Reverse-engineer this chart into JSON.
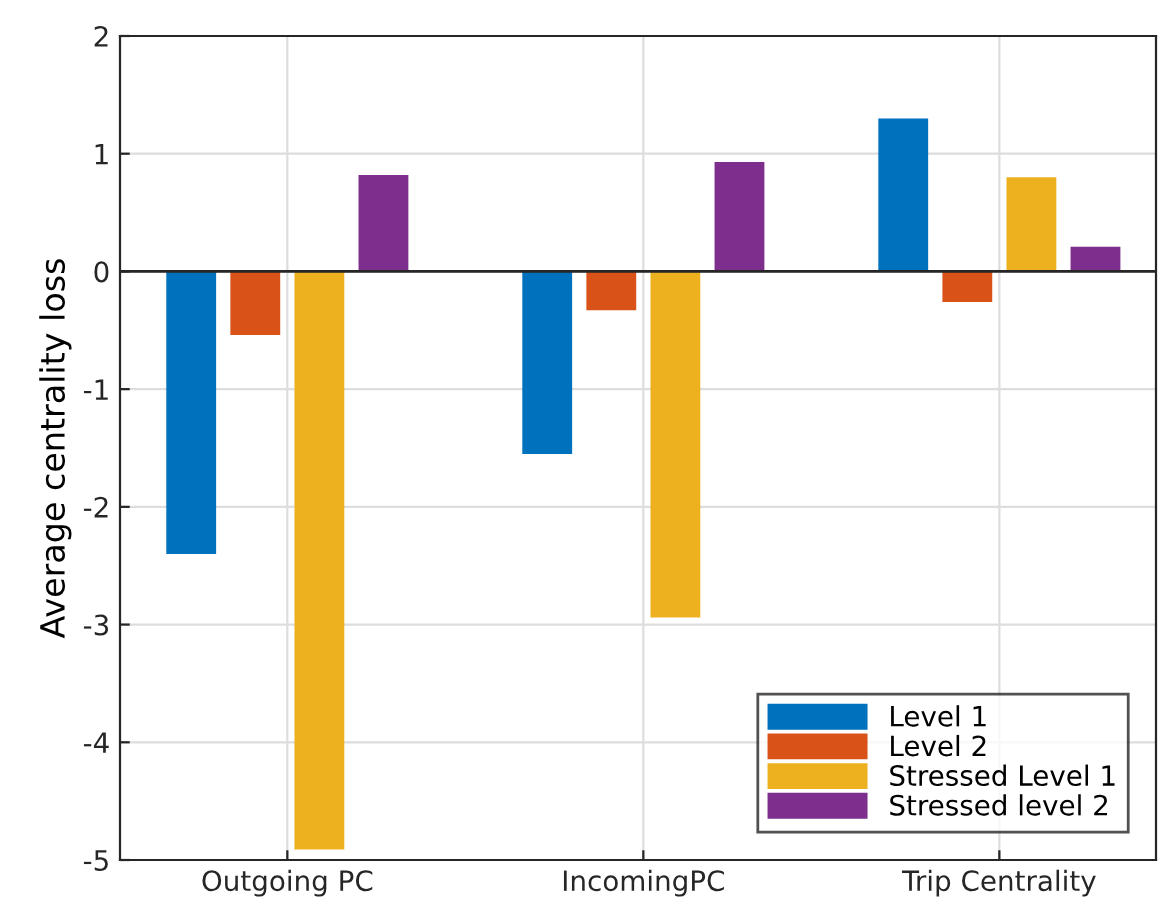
{
  "chart_data": {
    "type": "bar",
    "ylabel": "Average centrality loss",
    "categories": [
      "Outgoing PC",
      "IncomingPC",
      "Trip Centrality"
    ],
    "series": [
      {
        "name": "Level 1",
        "color": "#0072bd",
        "values": [
          -2.4,
          -1.55,
          1.3
        ]
      },
      {
        "name": "Level 2",
        "color": "#d95319",
        "values": [
          -0.54,
          -0.33,
          -0.26
        ]
      },
      {
        "name": "Stressed Level 1",
        "color": "#edb120",
        "values": [
          -4.91,
          -2.94,
          0.8
        ]
      },
      {
        "name": "Stressed level 2",
        "color": "#7e2f8e",
        "values": [
          0.82,
          0.93,
          0.21
        ]
      }
    ],
    "ylim": [
      -5,
      2
    ],
    "yticks": [
      -5,
      -4,
      -3,
      -2,
      -1,
      0,
      1,
      2
    ],
    "grid": true,
    "legend": "bottom right"
  }
}
